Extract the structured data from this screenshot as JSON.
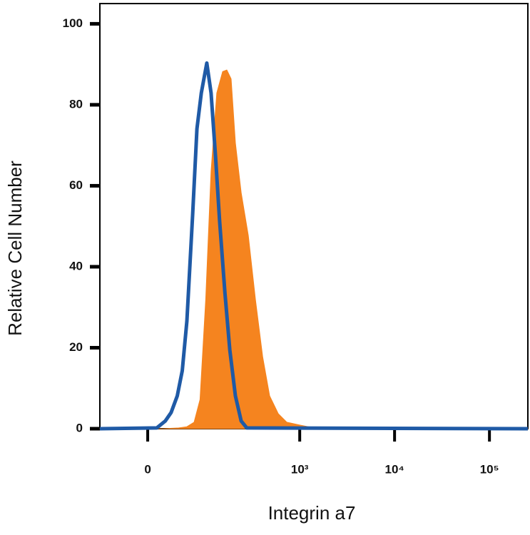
{
  "chart_data": {
    "type": "histogram-overlay",
    "x_label": "Integrin a7",
    "y_label": "Relative Cell Number",
    "xscale": "arcsinh",
    "arcsinh_cofactor": 50,
    "xlim": [
      -72,
      254000
    ],
    "ylim": [
      0,
      105
    ],
    "xticks": [
      0,
      {
        "value": 1000,
        "label": "10³"
      },
      {
        "value": 10000,
        "label": "10⁴"
      },
      {
        "value": 100000,
        "label": "10⁵"
      }
    ],
    "yticks": [
      0,
      20,
      40,
      60,
      80,
      100
    ],
    "series": [
      {
        "color": "#f5841f",
        "fill": true,
        "x": [
          -72,
          19,
          41,
          55,
          69,
          82,
          96,
          111,
          129,
          150,
          167,
          186,
          207,
          239,
          285,
          340,
          405,
          481,
          593,
          730,
          1000,
          1410,
          254000
        ],
        "values": [
          0,
          0,
          0.2,
          0.5,
          1.6,
          7.2,
          31.9,
          63.6,
          82.9,
          88.2,
          88.6,
          86.4,
          70.6,
          58.3,
          47.7,
          31.9,
          17.8,
          8.1,
          3.7,
          1.6,
          0.9,
          0.2,
          0
        ]
      },
      {
        "color": "#1f5aa6",
        "fill": false,
        "x": [
          -72,
          11,
          22,
          30,
          39,
          47,
          55,
          66,
          75,
          85,
          99,
          111,
          125,
          139,
          159,
          180,
          207,
          239,
          275,
          254000
        ],
        "values": [
          0,
          0.2,
          1.9,
          4.0,
          8.1,
          14.3,
          26.6,
          53.0,
          74.1,
          82.9,
          90.3,
          82.9,
          67.1,
          51.2,
          33.6,
          19.4,
          8.1,
          1.9,
          0.2,
          0
        ]
      }
    ]
  }
}
